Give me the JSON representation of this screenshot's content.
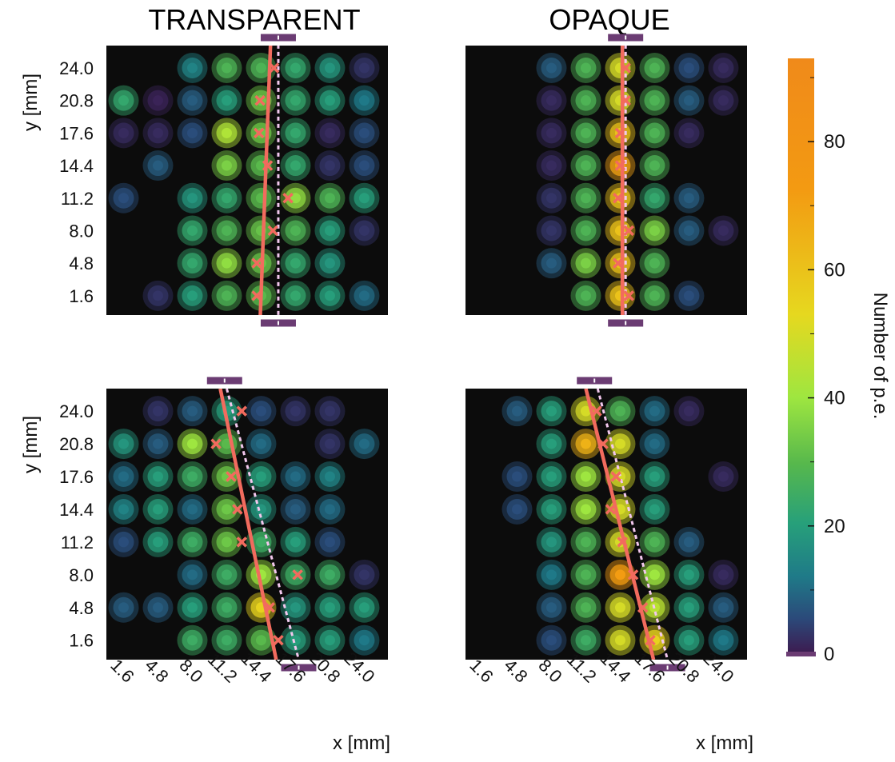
{
  "figure": {
    "x_axis_label": "x [mm]",
    "y_axis_label": "y [mm]",
    "colorbar_label": "Number of p.e.",
    "colorbar_ticks": [
      0,
      20,
      40,
      60,
      80
    ],
    "colorbar_range": [
      0,
      93
    ]
  },
  "colors": {
    "background": "#0c0c0c",
    "reconstructed_track": "#f26b5e",
    "true_track": "#f3c8ee",
    "entry_exit_marker": "#6b3c73",
    "colormap": [
      "#3d1a4f",
      "#2b4a7a",
      "#1f7a88",
      "#27a07a",
      "#57b84c",
      "#9ee640",
      "#e6d81f",
      "#f39a12",
      "#f08a1a"
    ]
  },
  "chart_data": [
    {
      "type": "heatmap",
      "title": "TRANSPARENT",
      "xlabel": "",
      "ylabel": "y [mm]",
      "x": [
        "1.6",
        "4.8",
        "8.0",
        "11.2",
        "14.4",
        "17.6",
        "20.8",
        "24.0"
      ],
      "y": [
        "1.6",
        "4.8",
        "8.0",
        "11.2",
        "14.4",
        "17.6",
        "20.8",
        "24.0"
      ],
      "z": [
        [
          0,
          3,
          20,
          28,
          30,
          23,
          20,
          10
        ],
        [
          0,
          0,
          23,
          38,
          32,
          23,
          18,
          0
        ],
        [
          0,
          0,
          23,
          28,
          32,
          28,
          20,
          3
        ],
        [
          6,
          0,
          18,
          23,
          30,
          38,
          28,
          20
        ],
        [
          0,
          8,
          0,
          35,
          30,
          23,
          3,
          6
        ],
        [
          2,
          2,
          6,
          43,
          33,
          23,
          2,
          6
        ],
        [
          23,
          1,
          8,
          20,
          33,
          23,
          20,
          12
        ],
        [
          0,
          0,
          14,
          28,
          28,
          23,
          18,
          3
        ]
      ],
      "track_reco": [
        [
          14.3,
          -1.0
        ],
        [
          15.3,
          27.0
        ]
      ],
      "track_true": [
        [
          16.0,
          -1.0
        ],
        [
          16.0,
          27.0
        ]
      ],
      "points": [
        [
          14.0,
          1.6
        ],
        [
          14.0,
          4.8
        ],
        [
          15.5,
          8.0
        ],
        [
          16.9,
          11.2
        ],
        [
          15.0,
          14.4
        ],
        [
          14.2,
          17.6
        ],
        [
          14.3,
          20.8
        ],
        [
          15.6,
          24.0
        ]
      ],
      "markers": [
        16.0,
        16.0
      ]
    },
    {
      "type": "heatmap",
      "title": "OPAQUE",
      "xlabel": "",
      "ylabel": "",
      "x": [
        "1.6",
        "4.8",
        "8.0",
        "11.2",
        "14.4",
        "17.6",
        "20.8",
        "24.0"
      ],
      "y": [
        "1.6",
        "4.8",
        "8.0",
        "11.2",
        "14.4",
        "17.6",
        "20.8",
        "24.0"
      ],
      "z": [
        [
          0,
          0,
          0,
          28,
          60,
          28,
          6,
          0
        ],
        [
          0,
          0,
          8,
          35,
          60,
          28,
          0,
          0
        ],
        [
          0,
          0,
          3,
          28,
          60,
          35,
          8,
          2
        ],
        [
          0,
          0,
          3,
          28,
          60,
          23,
          8,
          0
        ],
        [
          0,
          0,
          2,
          28,
          70,
          28,
          0,
          0
        ],
        [
          0,
          0,
          2,
          28,
          60,
          28,
          2,
          0
        ],
        [
          0,
          0,
          2,
          28,
          50,
          28,
          8,
          2
        ],
        [
          0,
          0,
          8,
          28,
          50,
          28,
          6,
          2
        ]
      ],
      "track_reco": [
        [
          14.6,
          -1.0
        ],
        [
          14.6,
          27.0
        ]
      ],
      "track_true": [
        [
          14.9,
          -1.0
        ],
        [
          14.9,
          27.0
        ]
      ],
      "points": [
        [
          15.2,
          1.6
        ],
        [
          14.2,
          4.8
        ],
        [
          15.2,
          8.0
        ],
        [
          14.2,
          11.2
        ],
        [
          14.4,
          14.4
        ],
        [
          14.4,
          17.6
        ],
        [
          14.9,
          20.8
        ],
        [
          14.9,
          24.0
        ]
      ],
      "markers": [
        14.9,
        14.9
      ]
    },
    {
      "type": "heatmap",
      "title": "",
      "xlabel": "x [mm]",
      "ylabel": "y [mm]",
      "x": [
        "1.6",
        "4.8",
        "8.0",
        "11.2",
        "14.4",
        "17.6",
        "20.8",
        "24.0"
      ],
      "y": [
        "1.6",
        "4.8",
        "8.0",
        "11.2",
        "14.4",
        "17.6",
        "20.8",
        "24.0"
      ],
      "z": [
        [
          0,
          0,
          25,
          25,
          30,
          20,
          20,
          12
        ],
        [
          8,
          8,
          20,
          25,
          55,
          18,
          20,
          20
        ],
        [
          0,
          0,
          10,
          25,
          40,
          25,
          25,
          3
        ],
        [
          6,
          20,
          25,
          33,
          25,
          20,
          6,
          0
        ],
        [
          14,
          20,
          10,
          33,
          18,
          8,
          10,
          0
        ],
        [
          10,
          20,
          25,
          33,
          20,
          10,
          14,
          0
        ],
        [
          18,
          8,
          40,
          30,
          10,
          0,
          3,
          10
        ],
        [
          0,
          3,
          8,
          20,
          6,
          3,
          3,
          0
        ]
      ],
      "track_reco": [
        [
          10.6,
          26.2
        ],
        [
          15.8,
          -0.3
        ]
      ],
      "track_true": [
        [
          11.2,
          26.2
        ],
        [
          17.9,
          -0.3
        ]
      ],
      "points": [
        [
          16.0,
          1.6
        ],
        [
          15.2,
          4.8
        ],
        [
          17.8,
          8.0
        ],
        [
          12.6,
          11.2
        ],
        [
          12.2,
          14.4
        ],
        [
          11.6,
          17.6
        ],
        [
          10.2,
          20.8
        ],
        [
          12.6,
          24.0
        ]
      ],
      "markers": [
        11.0,
        17.9
      ]
    },
    {
      "type": "heatmap",
      "title": "",
      "xlabel": "x [mm]",
      "ylabel": "",
      "x": [
        "1.6",
        "4.8",
        "8.0",
        "11.2",
        "14.4",
        "17.6",
        "20.8",
        "24.0"
      ],
      "y": [
        "1.6",
        "4.8",
        "8.0",
        "11.2",
        "14.4",
        "17.6",
        "20.8",
        "24.0"
      ],
      "z": [
        [
          0,
          0,
          6,
          25,
          50,
          55,
          20,
          12
        ],
        [
          0,
          0,
          8,
          28,
          50,
          45,
          20,
          8
        ],
        [
          0,
          0,
          12,
          28,
          72,
          40,
          20,
          2
        ],
        [
          0,
          0,
          18,
          28,
          50,
          28,
          8,
          0
        ],
        [
          0,
          6,
          20,
          40,
          50,
          20,
          0,
          0
        ],
        [
          0,
          6,
          20,
          40,
          50,
          20,
          0,
          2
        ],
        [
          0,
          0,
          20,
          65,
          50,
          10,
          0,
          0
        ],
        [
          0,
          8,
          20,
          50,
          28,
          10,
          2,
          0
        ]
      ],
      "track_reco": [
        [
          11.2,
          26.2
        ],
        [
          17.5,
          -0.3
        ]
      ],
      "track_true": [
        [
          12.3,
          26.2
        ],
        [
          18.8,
          -0.3
        ]
      ],
      "points": [
        [
          17.2,
          1.6
        ],
        [
          16.5,
          4.8
        ],
        [
          15.6,
          8.0
        ],
        [
          14.6,
          11.2
        ],
        [
          13.5,
          14.4
        ],
        [
          14.0,
          17.6
        ],
        [
          12.8,
          20.8
        ],
        [
          12.2,
          24.0
        ]
      ],
      "markers": [
        12.0,
        18.8
      ]
    }
  ]
}
